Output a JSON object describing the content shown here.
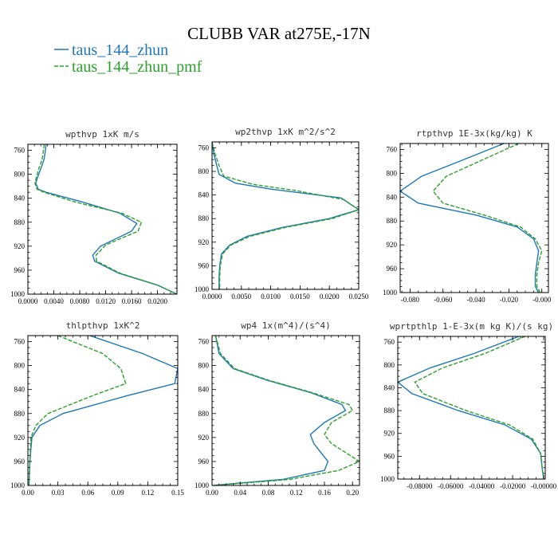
{
  "figure": {
    "title": "CLUBB VAR at275E,-17N"
  },
  "legend": [
    {
      "label": "taus_144_zhun",
      "color": "#1f77b4",
      "dash": "solid"
    },
    {
      "label": "taus_144_zhun_pmf",
      "color": "#2ca02c",
      "dash": "dashed"
    }
  ],
  "chart_data": [
    {
      "type": "line",
      "title": "wpthvp  1xK m/s",
      "xlim": [
        0,
        0.023
      ],
      "ylim": [
        1000,
        750
      ],
      "xticks": [
        0,
        0.004,
        0.008,
        0.012,
        0.016,
        0.02
      ],
      "xtick_labels": [
        "0.0000",
        "0.0040",
        "0.0080",
        "0.0120",
        "0.0160",
        "0.0200"
      ],
      "yticks": [
        760,
        800,
        840,
        880,
        920,
        960,
        1000
      ],
      "ytick_labels": [
        "760",
        "800",
        "840",
        "880",
        "920",
        "960",
        "1000"
      ],
      "series": [
        {
          "name": "taus_144_zhun",
          "x": [
            0.0028,
            0.0027,
            0.0025,
            0.002,
            0.0015,
            0.0012,
            0.0016,
            0.0028,
            0.008,
            0.0142,
            0.0168,
            0.016,
            0.0112,
            0.01,
            0.0103,
            0.014,
            0.02,
            0.023
          ],
          "y": [
            750,
            760,
            775,
            790,
            805,
            815,
            825,
            830,
            845,
            865,
            882,
            895,
            920,
            935,
            945,
            965,
            985,
            1000
          ]
        },
        {
          "name": "taus_144_zhun_pmf",
          "x": [
            0.0025,
            0.0024,
            0.0022,
            0.0017,
            0.0013,
            0.0011,
            0.0014,
            0.0025,
            0.0075,
            0.0145,
            0.0175,
            0.017,
            0.012,
            0.0105,
            0.0106,
            0.0142,
            0.02,
            0.023
          ],
          "y": [
            750,
            760,
            775,
            790,
            805,
            815,
            825,
            830,
            847,
            865,
            880,
            895,
            918,
            935,
            945,
            965,
            985,
            1000
          ]
        }
      ]
    },
    {
      "type": "line",
      "title": "wp2thvp  1xK m^2/s^2",
      "xlim": [
        0,
        0.025
      ],
      "ylim": [
        1000,
        750
      ],
      "xticks": [
        0,
        0.005,
        0.01,
        0.015,
        0.02,
        0.025
      ],
      "xtick_labels": [
        "0.0000",
        "0.0050",
        "0.0100",
        "0.0150",
        "0.0200",
        "0.0250"
      ],
      "yticks": [
        760,
        800,
        840,
        880,
        920,
        960,
        1000
      ],
      "ytick_labels": [
        "760",
        "800",
        "840",
        "880",
        "920",
        "960",
        "1000"
      ],
      "series": [
        {
          "name": "taus_144_zhun",
          "x": [
            0.0,
            0.0003,
            0.0008,
            0.0012,
            0.004,
            0.01,
            0.022,
            0.025,
            0.02,
            0.012,
            0.006,
            0.003,
            0.0016,
            0.0013,
            0.0012,
            0.0012
          ],
          "y": [
            750,
            770,
            790,
            805,
            820,
            830,
            845,
            865,
            880,
            895,
            910,
            925,
            940,
            960,
            980,
            1000
          ]
        },
        {
          "name": "taus_144_zhun_pmf",
          "x": [
            0.0,
            0.0005,
            0.0012,
            0.002,
            0.007,
            0.014,
            0.0225,
            0.025,
            0.0205,
            0.0125,
            0.0065,
            0.0032,
            0.0018,
            0.0014,
            0.0013,
            0.0013
          ],
          "y": [
            750,
            770,
            790,
            808,
            822,
            832,
            848,
            865,
            880,
            895,
            910,
            925,
            940,
            960,
            980,
            1000
          ]
        }
      ]
    },
    {
      "type": "line",
      "title": "rtpthvp  1E-3x(kg/kg) K",
      "xlim": [
        -0.086,
        0.004
      ],
      "ylim": [
        1000,
        750
      ],
      "xticks": [
        -0.08,
        -0.06,
        -0.04,
        -0.02,
        0.0
      ],
      "xtick_labels": [
        "-0.080",
        "-0.060",
        "-0.040",
        "-0.020",
        "-0.000"
      ],
      "yticks": [
        760,
        800,
        840,
        880,
        920,
        960,
        1000
      ],
      "ytick_labels": [
        "760",
        "800",
        "840",
        "880",
        "920",
        "960",
        "1000"
      ],
      "series": [
        {
          "name": "taus_144_zhun",
          "x": [
            -0.023,
            -0.05,
            -0.073,
            -0.086,
            -0.075,
            -0.04,
            -0.015,
            -0.005,
            -0.002,
            -0.003,
            -0.004,
            -0.004,
            -0.002
          ],
          "y": [
            750,
            780,
            805,
            830,
            850,
            870,
            890,
            910,
            930,
            950,
            970,
            990,
            1000
          ]
        },
        {
          "name": "taus_144_zhun_pmf",
          "x": [
            -0.014,
            -0.038,
            -0.058,
            -0.066,
            -0.06,
            -0.035,
            -0.013,
            -0.004,
            0.0,
            -0.002,
            -0.003,
            -0.003,
            -0.001
          ],
          "y": [
            750,
            780,
            805,
            830,
            850,
            870,
            890,
            910,
            930,
            950,
            970,
            990,
            1000
          ]
        }
      ]
    },
    {
      "type": "line",
      "title": "thlpthvp  1xK^2",
      "xlim": [
        0,
        0.15
      ],
      "ylim": [
        1000,
        750
      ],
      "xticks": [
        0,
        0.03,
        0.06,
        0.09,
        0.12,
        0.15
      ],
      "xtick_labels": [
        "0.00",
        "0.03",
        "0.06",
        "0.09",
        "0.12",
        "0.15"
      ],
      "yticks": [
        760,
        800,
        840,
        880,
        920,
        960,
        1000
      ],
      "ytick_labels": [
        "760",
        "800",
        "840",
        "880",
        "920",
        "960",
        "1000"
      ],
      "series": [
        {
          "name": "taus_144_zhun",
          "x": [
            0.062,
            0.115,
            0.15,
            0.147,
            0.1,
            0.035,
            0.012,
            0.004,
            0.002,
            0.001
          ],
          "y": [
            750,
            780,
            805,
            830,
            850,
            880,
            900,
            920,
            960,
            1000
          ]
        },
        {
          "name": "taus_144_zhun_pmf",
          "x": [
            0.03,
            0.075,
            0.093,
            0.098,
            0.065,
            0.02,
            0.008,
            0.003,
            0.002,
            0.001
          ],
          "y": [
            750,
            780,
            805,
            830,
            850,
            880,
            900,
            920,
            960,
            1000
          ]
        }
      ]
    },
    {
      "type": "line",
      "title": "wp4  1x(m^4)/(s^4)",
      "xlim": [
        0,
        0.21
      ],
      "ylim": [
        1000,
        750
      ],
      "xticks": [
        0,
        0.04,
        0.08,
        0.12,
        0.16,
        0.2
      ],
      "xtick_labels": [
        "0.00",
        "0.04",
        "0.08",
        "0.12",
        "0.16",
        "0.20"
      ],
      "yticks": [
        760,
        800,
        840,
        880,
        920,
        960,
        1000
      ],
      "ytick_labels": [
        "760",
        "800",
        "840",
        "880",
        "920",
        "960",
        "1000"
      ],
      "series": [
        {
          "name": "taus_144_zhun",
          "x": [
            0.005,
            0.01,
            0.03,
            0.08,
            0.14,
            0.185,
            0.19,
            0.16,
            0.14,
            0.145,
            0.165,
            0.16,
            0.1,
            0.03,
            0.002
          ],
          "y": [
            750,
            780,
            805,
            825,
            845,
            865,
            875,
            895,
            915,
            930,
            960,
            975,
            990,
            997,
            1000
          ]
        },
        {
          "name": "taus_144_zhun_pmf",
          "x": [
            0.005,
            0.012,
            0.032,
            0.082,
            0.142,
            0.195,
            0.2,
            0.17,
            0.16,
            0.17,
            0.21,
            0.18,
            0.11,
            0.035,
            0.002
          ],
          "y": [
            750,
            780,
            805,
            825,
            845,
            865,
            875,
            895,
            915,
            930,
            960,
            975,
            990,
            997,
            1000
          ]
        }
      ]
    },
    {
      "type": "line",
      "title": "wprtpthlp  1-E-3x(m kg K)/(s kg)",
      "xlim": [
        -0.094,
        0.001
      ],
      "ylim": [
        1000,
        750
      ],
      "xticks": [
        -0.08,
        -0.06,
        -0.04,
        -0.02,
        0.0
      ],
      "xtick_labels": [
        "-0.08000",
        "-0.06000",
        "-0.04000",
        "-0.02000",
        "-0.00000"
      ],
      "yticks": [
        760,
        800,
        840,
        880,
        920,
        960,
        1000
      ],
      "ytick_labels": [
        "760",
        "800",
        "840",
        "880",
        "920",
        "960",
        "1000"
      ],
      "series": [
        {
          "name": "taus_144_zhun",
          "x": [
            -0.016,
            -0.045,
            -0.073,
            -0.094,
            -0.085,
            -0.055,
            -0.025,
            -0.008,
            -0.002,
            -0.001,
            -0.0
          ],
          "y": [
            750,
            780,
            805,
            830,
            850,
            880,
            905,
            930,
            955,
            980,
            1000
          ]
        },
        {
          "name": "taus_144_zhun_pmf",
          "x": [
            -0.012,
            -0.038,
            -0.065,
            -0.083,
            -0.078,
            -0.05,
            -0.022,
            -0.007,
            -0.002,
            -0.001,
            -0.0
          ],
          "y": [
            750,
            780,
            805,
            830,
            850,
            880,
            905,
            930,
            955,
            980,
            1000
          ]
        }
      ]
    }
  ]
}
